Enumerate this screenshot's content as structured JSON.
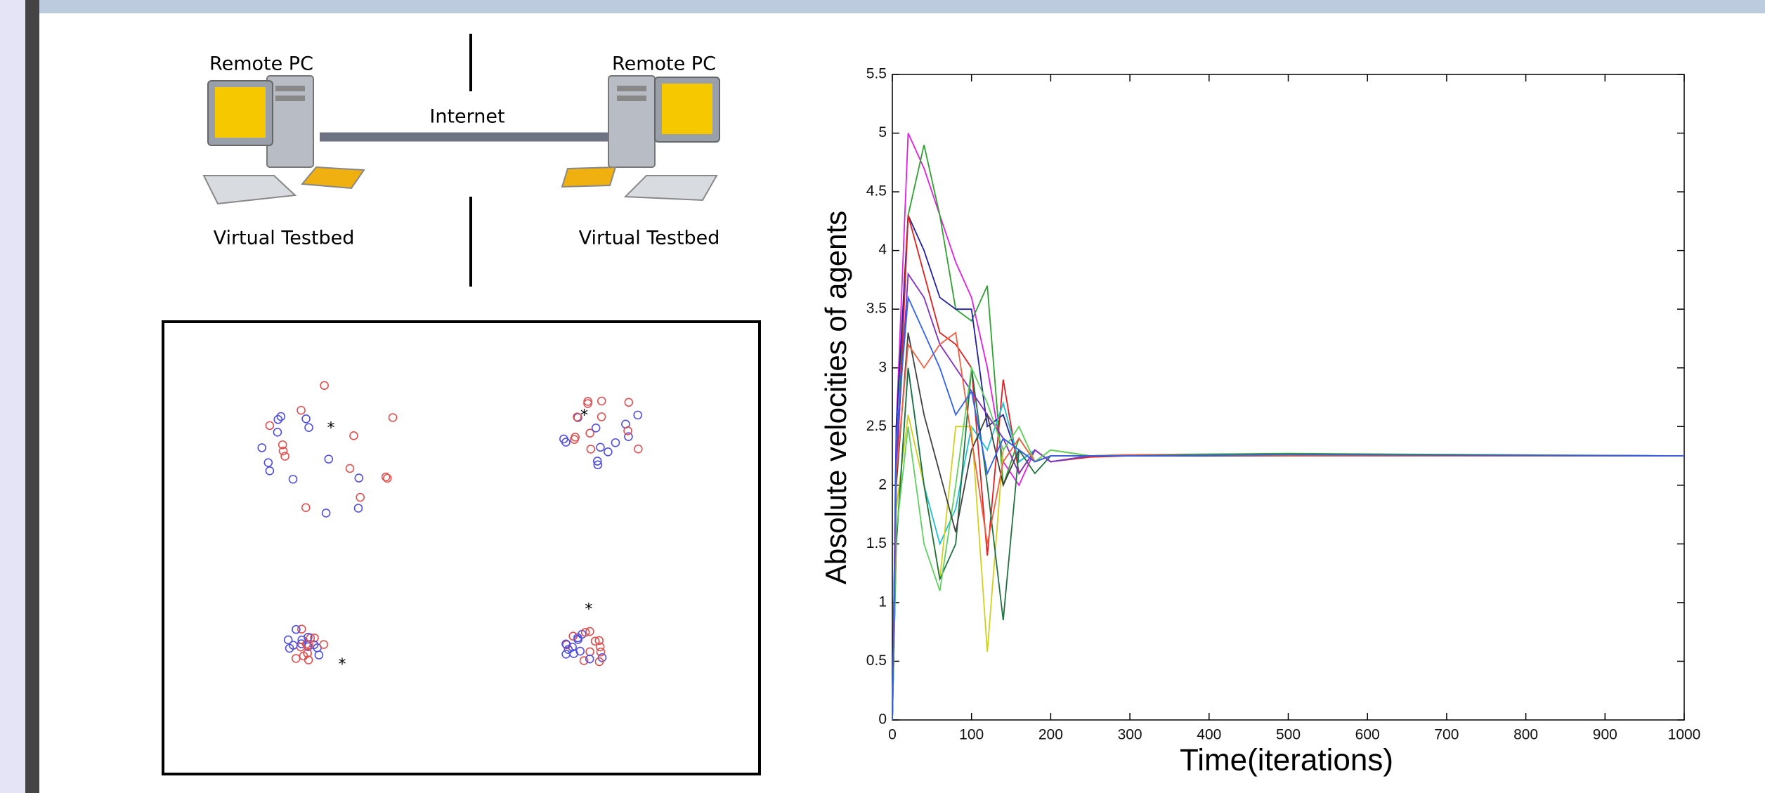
{
  "diagram": {
    "left_pc": "Remote PC",
    "right_pc": "Remote PC",
    "link": "Internet",
    "left_testbed": "Virtual Testbed",
    "right_testbed": "Virtual Testbed"
  },
  "chart_data": {
    "type": "line",
    "xlabel": "Time(iterations)",
    "ylabel": "Absolute velocities of agents",
    "x": [
      0,
      5,
      20,
      40,
      60,
      80,
      100,
      120,
      140,
      160,
      180,
      200,
      250,
      300,
      500,
      1000
    ],
    "xlim": [
      0,
      1000
    ],
    "xticks": [
      0,
      100,
      200,
      300,
      400,
      500,
      600,
      700,
      800,
      900,
      1000
    ],
    "ylim": [
      0,
      5.5
    ],
    "yticks": [
      0,
      0.5,
      1,
      1.5,
      2,
      2.5,
      3,
      3.5,
      4,
      4.5,
      5,
      5.5
    ],
    "series": [
      {
        "color": "#e020e0",
        "values": [
          0,
          2.5,
          5.0,
          4.7,
          4.3,
          3.9,
          3.6,
          3.0,
          2.2,
          2.0,
          2.3,
          2.2,
          2.25,
          2.25,
          2.26,
          2.25
        ]
      },
      {
        "color": "#30a030",
        "values": [
          0,
          2.2,
          4.3,
          4.9,
          4.3,
          3.5,
          3.4,
          3.7,
          2.0,
          2.4,
          2.2,
          2.3,
          2.25,
          2.26,
          2.27,
          2.25
        ]
      },
      {
        "color": "#2020a0",
        "values": [
          0,
          2.5,
          4.3,
          4.0,
          3.6,
          3.5,
          3.5,
          2.5,
          2.6,
          2.2,
          2.3,
          2.2,
          2.25,
          2.25,
          2.26,
          2.25
        ]
      },
      {
        "color": "#e02020",
        "values": [
          0,
          2.0,
          4.3,
          3.8,
          3.3,
          3.2,
          3.0,
          1.4,
          2.9,
          2.1,
          2.3,
          2.2,
          2.24,
          2.25,
          2.25,
          2.25
        ]
      },
      {
        "color": "#20c0d0",
        "values": [
          0,
          1.5,
          3.0,
          2.0,
          1.5,
          1.8,
          2.5,
          2.3,
          2.7,
          2.2,
          2.3,
          2.2,
          2.25,
          2.25,
          2.25,
          2.25
        ]
      },
      {
        "color": "#d0d020",
        "values": [
          0,
          1.8,
          2.6,
          2.0,
          1.2,
          2.5,
          2.5,
          0.58,
          2.3,
          2.5,
          2.2,
          2.3,
          2.25,
          2.26,
          2.25,
          2.25
        ]
      },
      {
        "color": "#207040",
        "values": [
          0,
          1.5,
          3.0,
          2.0,
          1.2,
          1.5,
          3.0,
          2.0,
          0.85,
          2.3,
          2.1,
          2.25,
          2.25,
          2.25,
          2.26,
          2.25
        ]
      },
      {
        "color": "#8030c0",
        "values": [
          0,
          2.2,
          3.8,
          3.6,
          3.2,
          3.0,
          2.8,
          2.6,
          2.4,
          2.1,
          2.3,
          2.2,
          2.25,
          2.25,
          2.25,
          2.25
        ]
      },
      {
        "color": "#60d060",
        "values": [
          0,
          1.6,
          2.5,
          1.5,
          1.1,
          2.0,
          3.0,
          2.7,
          2.3,
          2.5,
          2.2,
          2.3,
          2.25,
          2.26,
          2.25,
          2.25
        ]
      },
      {
        "color": "#404040",
        "values": [
          0,
          2.0,
          3.3,
          2.6,
          2.1,
          1.6,
          2.3,
          2.6,
          2.0,
          2.3,
          2.2,
          2.25,
          2.25,
          2.25,
          2.25,
          2.25
        ]
      },
      {
        "color": "#f06040",
        "values": [
          0,
          2.1,
          3.2,
          3.0,
          3.2,
          3.3,
          2.4,
          1.5,
          2.2,
          2.4,
          2.2,
          2.25,
          2.25,
          2.26,
          2.25,
          2.25
        ]
      },
      {
        "color": "#3060f0",
        "values": [
          0,
          2.4,
          3.6,
          3.3,
          3.0,
          2.6,
          2.8,
          2.1,
          2.4,
          2.3,
          2.2,
          2.25,
          2.25,
          2.25,
          2.26,
          2.25
        ]
      }
    ]
  }
}
